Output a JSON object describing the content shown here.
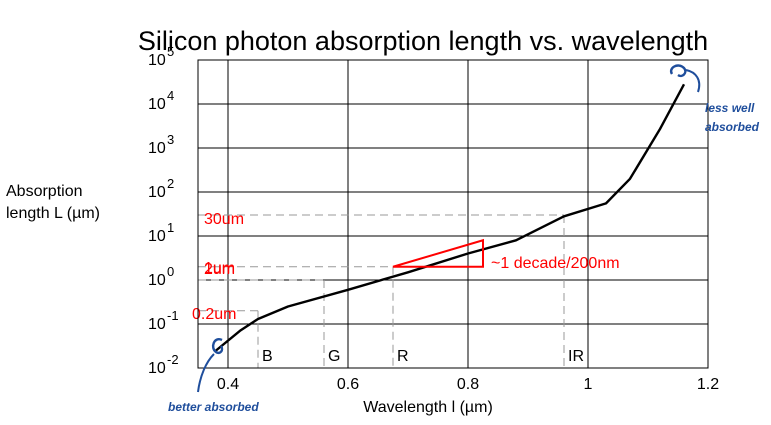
{
  "chart_data": {
    "type": "line",
    "title": "Silicon photon absorption length vs. wavelength",
    "xlabel": "Wavelength l  (µm)",
    "ylabel_lines": [
      "Absorption",
      "length  L (µm)"
    ],
    "xlim": [
      0.35,
      1.2
    ],
    "ylim_log10": [
      -2,
      5
    ],
    "y_scale": "log",
    "grid": true,
    "x_ticks": [
      {
        "value": 0.4,
        "label": "0.4"
      },
      {
        "value": 0.6,
        "label": "0.6"
      },
      {
        "value": 0.8,
        "label": "0.8"
      },
      {
        "value": 1.0,
        "label": "1"
      },
      {
        "value": 1.2,
        "label": "1.2"
      }
    ],
    "y_ticks": [
      {
        "value": -2,
        "base": "10",
        "exp": "-2"
      },
      {
        "value": -1,
        "base": "10",
        "exp": "-1"
      },
      {
        "value": 0,
        "base": "10",
        "exp": "0"
      },
      {
        "value": 1,
        "base": "10",
        "exp": "1"
      },
      {
        "value": 2,
        "base": "10",
        "exp": "2"
      },
      {
        "value": 3,
        "base": "10",
        "exp": "3"
      },
      {
        "value": 4,
        "base": "10",
        "exp": "4"
      },
      {
        "value": 5,
        "base": "10",
        "exp": "5"
      }
    ],
    "series": [
      {
        "x": [
          0.38,
          0.42,
          0.45,
          0.5,
          0.6,
          0.7,
          0.8,
          0.88,
          0.96,
          1.03,
          1.07,
          1.12,
          1.16
        ],
        "y": [
          0.025,
          0.07,
          0.13,
          0.25,
          0.6,
          1.5,
          4.0,
          8.0,
          28,
          55,
          200,
          2700,
          28000
        ]
      }
    ],
    "color_bands": [
      {
        "label": "B",
        "x": 0.45
      },
      {
        "label": "G",
        "x": 0.56
      },
      {
        "label": "R",
        "x": 0.675
      },
      {
        "label": "IR",
        "x": 0.96
      }
    ],
    "reference_lines": [
      {
        "label": "30um",
        "y": 30,
        "x_end": 0.96
      },
      {
        "label": "2um",
        "y": 2,
        "x_end": 0.675
      },
      {
        "label": "1um",
        "y": 1,
        "x_end": 0.56
      },
      {
        "label": "0.2um",
        "y": 0.2,
        "x_end": 0.45
      }
    ],
    "slope_annotation": {
      "label": "~1 decade/200nm",
      "x0": 0.675,
      "x1": 0.825,
      "y0": 2,
      "y1": 8
    },
    "handwritten_notes": {
      "top_right": [
        "less well",
        "absorbed"
      ],
      "bottom_left": "better absorbed"
    },
    "colors": {
      "curve": "#000000",
      "grid": "#000000",
      "reference": "#999999",
      "annotation": "#ff0000",
      "handwriting": "#1f4e9c"
    }
  }
}
